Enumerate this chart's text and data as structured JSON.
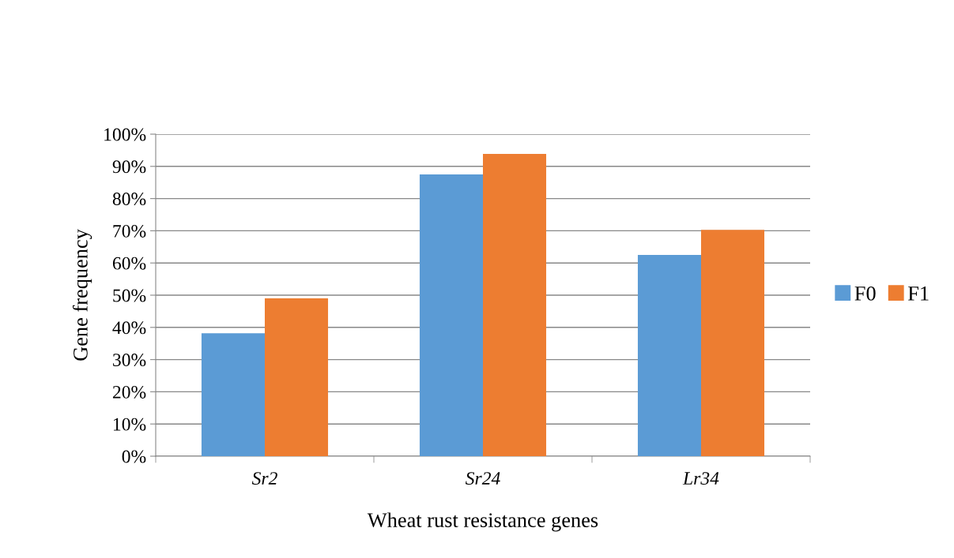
{
  "chart_data": {
    "type": "bar",
    "xlabel": "Wheat rust resistance genes",
    "ylabel": "Gene frequency",
    "categories": [
      "Sr2",
      "Sr24",
      "Lr34"
    ],
    "series": [
      {
        "name": "F0",
        "color": "#5b9bd5",
        "values": [
          38.2,
          87.5,
          62.5
        ]
      },
      {
        "name": "F1",
        "color": "#ed7d31",
        "values": [
          49.0,
          93.9,
          70.3
        ]
      }
    ],
    "ylim": [
      0,
      100
    ],
    "yticks": [
      {
        "value": 0,
        "label": "0%"
      },
      {
        "value": 10,
        "label": "10%"
      },
      {
        "value": 20,
        "label": "20%"
      },
      {
        "value": 30,
        "label": "30%"
      },
      {
        "value": 40,
        "label": "40%"
      },
      {
        "value": 50,
        "label": "50%"
      },
      {
        "value": 60,
        "label": "60%"
      },
      {
        "value": 70,
        "label": "70%"
      },
      {
        "value": 80,
        "label": "80%"
      },
      {
        "value": 90,
        "label": "90%"
      },
      {
        "value": 100,
        "label": "100%"
      }
    ],
    "grid": "y",
    "legend": "right"
  }
}
